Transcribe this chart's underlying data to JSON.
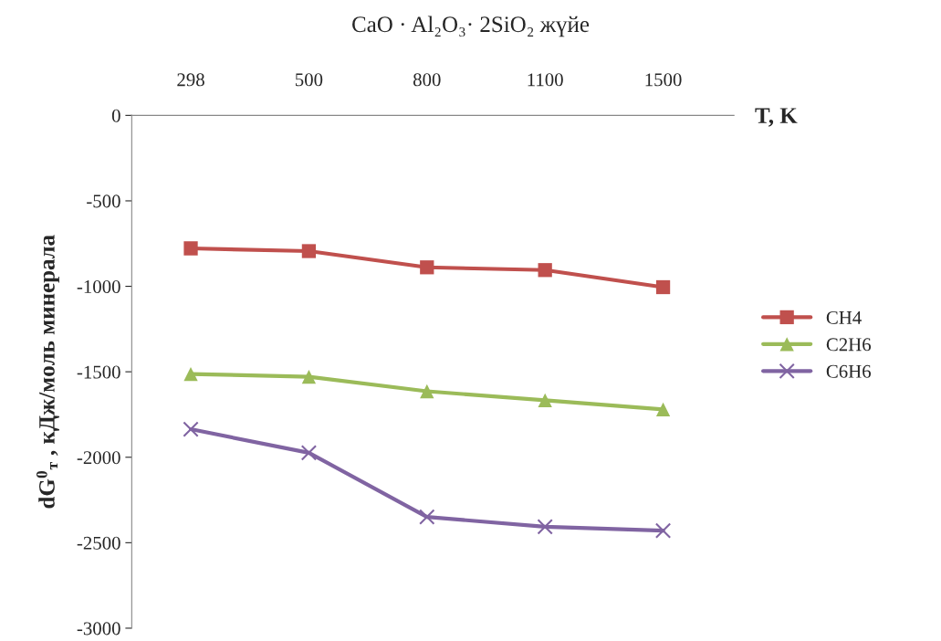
{
  "chart_data": {
    "type": "line",
    "title": "CaO · Al₂O₃· 2SiO₂ жүйе",
    "xlabel": "T, K",
    "ylabel": "dG$^{0}$$_{т}$ , кДж/моль минерала",
    "categories": [
      "298",
      "500",
      "800",
      "1100",
      "1500"
    ],
    "ylim": [
      -3000,
      0
    ],
    "yticks": [
      -3000,
      -2500,
      -2000,
      -1500,
      -1000,
      -500,
      0
    ],
    "grid": false,
    "legend": "right",
    "series": [
      {
        "name": "CH4",
        "color": "#c0504d",
        "marker": "square",
        "values": [
          -778,
          -794,
          -889,
          -905,
          -1005
        ]
      },
      {
        "name": "C2H6",
        "color": "#9bbb59",
        "marker": "triangle",
        "values": [
          -1513,
          -1529,
          -1614,
          -1667,
          -1720
        ]
      },
      {
        "name": "C6H6",
        "color": "#8064a2",
        "marker": "cross",
        "values": [
          -1836,
          -1974,
          -2349,
          -2407,
          -2429
        ]
      }
    ]
  }
}
